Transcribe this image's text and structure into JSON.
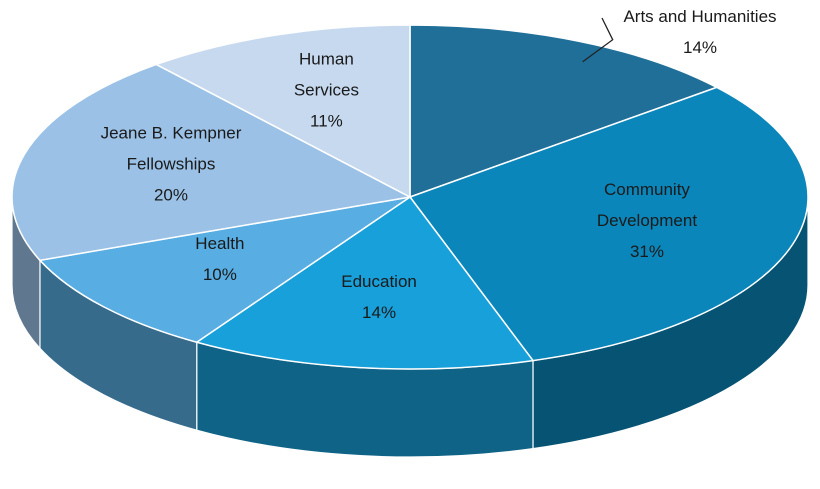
{
  "chart_data": {
    "type": "pie3d",
    "categories": [
      "Arts and Humanities",
      "Community\nDevelopment",
      "Education",
      "Health",
      "Jeane B. Kempner\nFellowships",
      "Human\nServices"
    ],
    "values": [
      14,
      31,
      14,
      10,
      20,
      11
    ],
    "value_labels": [
      "14%",
      "31%",
      "14%",
      "10%",
      "20%",
      "11%"
    ],
    "colors": [
      "#1f6f98",
      "#0b86ba",
      "#17a0da",
      "#58ade2",
      "#9bc2e6",
      "#c6d9ef"
    ]
  }
}
